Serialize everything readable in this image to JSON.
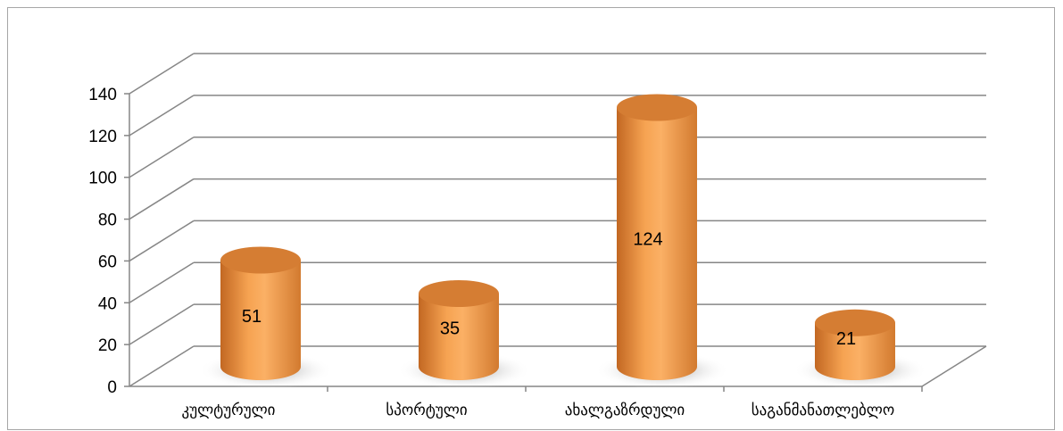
{
  "chart_data": {
    "type": "bar",
    "style": "3d-cylinder",
    "categories": [
      "კულტურული",
      "სპორტული",
      "ახალგაზრდული",
      "საგანმანათლებლო"
    ],
    "values": [
      51,
      35,
      124,
      21
    ],
    "data_labels": [
      "51",
      "35",
      "124",
      "21"
    ],
    "title": "",
    "xlabel": "",
    "ylabel": "",
    "ylim": [
      0,
      140
    ],
    "yticks": [
      "0",
      "20",
      "40",
      "60",
      "80",
      "100",
      "120",
      "140"
    ],
    "grid": true,
    "legend": "none",
    "bar_color": "#f09a45",
    "bar_color_dark": "#c9702a",
    "bar_top_color": "#d57d33"
  }
}
